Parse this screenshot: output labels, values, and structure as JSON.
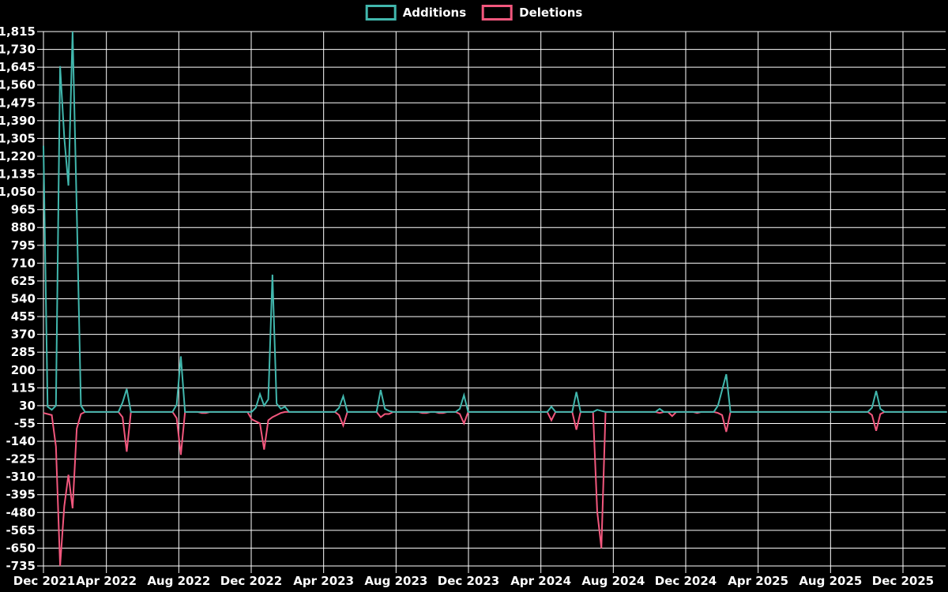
{
  "legend": {
    "items": [
      {
        "label": "Additions",
        "color": "#41b7ad"
      },
      {
        "label": "Deletions",
        "color": "#f2577d"
      }
    ]
  },
  "colors": {
    "background": "#000000",
    "grid": "#ffffff",
    "text": "#ffffff",
    "additions": "#41b7ad",
    "deletions": "#f2577d"
  },
  "chart_data": {
    "type": "line",
    "title": "",
    "xlabel": "",
    "ylabel": "",
    "frequency": "weekly",
    "start_week": "2021-12-19",
    "num_weeks": 218,
    "x_axis": {
      "tick_labels": [
        "Dec 2021",
        "Apr 2022",
        "Aug 2022",
        "Dec 2022",
        "Apr 2023",
        "Aug 2023",
        "Dec 2023",
        "Apr 2024",
        "Aug 2024",
        "Dec 2024",
        "Apr 2025",
        "Aug 2025",
        "Dec 2025"
      ],
      "months_per_tick": 4
    },
    "y_axis": {
      "max": 1815,
      "min": -735,
      "tick_step": 85,
      "ticks": [
        1815,
        1730,
        1645,
        1560,
        1475,
        1390,
        1305,
        1220,
        1135,
        1050,
        965,
        880,
        795,
        710,
        625,
        540,
        455,
        370,
        285,
        200,
        115,
        30,
        -55,
        -140,
        -225,
        -310,
        -395,
        -480,
        -565,
        -650,
        -735
      ]
    },
    "grid": true,
    "legend_position": "top-center",
    "series": [
      {
        "name": "Additions",
        "color": "#41b7ad",
        "default_value": 0,
        "sparse_weekly_values": {
          "0": 1270,
          "1": 25,
          "2": 10,
          "3": 30,
          "4": 1650,
          "5": 1310,
          "6": 1080,
          "7": 1815,
          "8": 960,
          "9": 30,
          "19": 45,
          "20": 110,
          "32": 35,
          "33": 265,
          "51": 20,
          "52": 85,
          "53": 30,
          "54": 60,
          "55": 655,
          "56": 40,
          "57": 15,
          "58": 25,
          "71": 20,
          "72": 75,
          "81": 105,
          "82": 15,
          "83": 5,
          "100": 15,
          "101": 80,
          "122": 25,
          "128": 95,
          "133": 10,
          "134": 5,
          "148": 15,
          "162": 30,
          "163": 105,
          "164": 180,
          "199": 20,
          "200": 100,
          "201": 15
        }
      },
      {
        "name": "Deletions",
        "color": "#f2577d",
        "default_value": 0,
        "sparse_weekly_values": {
          "0": -5,
          "1": -10,
          "2": -15,
          "3": -165,
          "4": -735,
          "5": -450,
          "6": -300,
          "7": -460,
          "8": -80,
          "9": -10,
          "19": -25,
          "20": -190,
          "32": -30,
          "33": -205,
          "38": -5,
          "39": -5,
          "50": -35,
          "51": -45,
          "52": -55,
          "53": -180,
          "54": -40,
          "55": -25,
          "56": -15,
          "57": -5,
          "71": -15,
          "72": -65,
          "81": -25,
          "82": -10,
          "83": -10,
          "91": -5,
          "92": -5,
          "95": -5,
          "96": -5,
          "100": -10,
          "101": -55,
          "122": -40,
          "128": -85,
          "133": -475,
          "134": -650,
          "148": -5,
          "151": -20,
          "157": -5,
          "162": -5,
          "163": -15,
          "164": -95,
          "199": -15,
          "200": -90,
          "201": -10
        }
      }
    ]
  }
}
